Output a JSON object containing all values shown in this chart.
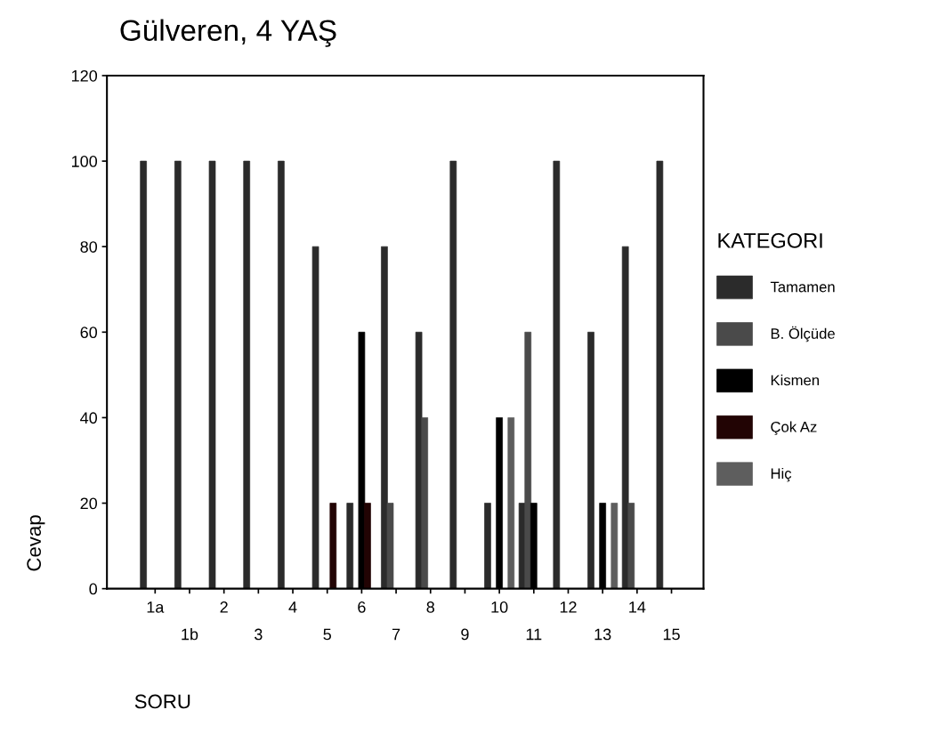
{
  "chart_data": {
    "type": "bar",
    "title": "Gülveren, 4 YAŞ",
    "xlabel": "SORU",
    "ylabel": "Cevap",
    "legend_title": "KATEGORI",
    "categories": [
      "1a",
      "1b",
      "2",
      "3",
      "4",
      "5",
      "6",
      "7",
      "8",
      "9",
      "10",
      "11",
      "12",
      "13",
      "14",
      "15"
    ],
    "series": [
      {
        "name": "Tamamen",
        "color": "#2b2b2b",
        "values": [
          100,
          100,
          100,
          100,
          100,
          80,
          20,
          80,
          60,
          100,
          20,
          20,
          100,
          60,
          80,
          100
        ]
      },
      {
        "name": "B. Ölçüde",
        "color": "#4a4a4a",
        "values": [
          0,
          0,
          0,
          0,
          0,
          0,
          0,
          20,
          40,
          0,
          0,
          60,
          0,
          0,
          20,
          0
        ]
      },
      {
        "name": "Kismen",
        "color": "#000000",
        "values": [
          0,
          0,
          0,
          0,
          0,
          0,
          60,
          0,
          0,
          0,
          40,
          20,
          0,
          20,
          0,
          0
        ]
      },
      {
        "name": "Çok Az",
        "color": "#220404",
        "values": [
          0,
          0,
          0,
          0,
          0,
          20,
          20,
          0,
          0,
          0,
          0,
          0,
          0,
          0,
          0,
          0
        ]
      },
      {
        "name": "Hiç",
        "color": "#5e5e5e",
        "values": [
          0,
          0,
          0,
          0,
          0,
          0,
          0,
          0,
          0,
          0,
          40,
          0,
          0,
          20,
          0,
          0
        ]
      }
    ],
    "ylim": [
      0,
      120
    ],
    "yticks": [
      0,
      20,
      40,
      60,
      80,
      100,
      120
    ],
    "grid": false,
    "legend": "right"
  }
}
